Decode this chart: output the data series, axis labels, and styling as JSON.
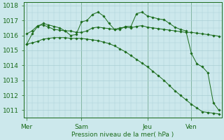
{
  "background_color": "#cce8ec",
  "grid_color": "#aacfd4",
  "line_color": "#1a6b1a",
  "xlabel": "Pression niveau de la mer( hPa )",
  "ylim": [
    1010.5,
    1018.2
  ],
  "day_labels": [
    "Mer",
    "Sam",
    "Jeu",
    "Ven"
  ],
  "day_positions": [
    0,
    10,
    22,
    30
  ],
  "series1_x": [
    0,
    1,
    2,
    3,
    4,
    5,
    6,
    7,
    8,
    9,
    10,
    11,
    12,
    13,
    14,
    15,
    16,
    17,
    18,
    19,
    20,
    21,
    22,
    23,
    24,
    25,
    26,
    27,
    28,
    29,
    30,
    31,
    32,
    33,
    34,
    35
  ],
  "series1_y": [
    1016.1,
    1016.3,
    1016.65,
    1016.7,
    1016.55,
    1016.4,
    1016.35,
    1016.3,
    1016.3,
    1016.2,
    1016.2,
    1016.3,
    1016.5,
    1016.55,
    1016.5,
    1016.45,
    1016.4,
    1016.5,
    1016.55,
    1016.5,
    1016.6,
    1016.65,
    1016.55,
    1016.5,
    1016.45,
    1016.4,
    1016.35,
    1016.3,
    1016.25,
    1016.2,
    1016.2,
    1016.15,
    1016.1,
    1016.05,
    1016.0,
    1015.95
  ],
  "series2_x": [
    0,
    1,
    2,
    3,
    4,
    5,
    6,
    7,
    8,
    9,
    10,
    11,
    12,
    13,
    14,
    15,
    16,
    17,
    18,
    19,
    20,
    21,
    22,
    23,
    24,
    25,
    26,
    27,
    28,
    29,
    30,
    31,
    32,
    33,
    34,
    35
  ],
  "series2_y": [
    1015.4,
    1016.1,
    1016.6,
    1016.8,
    1016.7,
    1016.6,
    1016.5,
    1016.3,
    1016.0,
    1016.05,
    1016.9,
    1017.0,
    1017.4,
    1017.55,
    1017.3,
    1016.8,
    1016.4,
    1016.4,
    1016.6,
    1016.6,
    1017.45,
    1017.55,
    1017.3,
    1017.2,
    1017.1,
    1017.05,
    1016.8,
    1016.55,
    1016.4,
    1016.3,
    1014.8,
    1014.1,
    1013.9,
    1013.5,
    1011.5,
    1011.0
  ],
  "series3_x": [
    0,
    1,
    2,
    3,
    4,
    5,
    6,
    7,
    8,
    9,
    10,
    11,
    12,
    13,
    14,
    15,
    16,
    17,
    18,
    19,
    20,
    21,
    22,
    23,
    24,
    25,
    26,
    27,
    28,
    29,
    30,
    31,
    32,
    33,
    34,
    35
  ],
  "series3_y": [
    1015.4,
    1015.5,
    1015.6,
    1015.75,
    1015.8,
    1015.85,
    1015.85,
    1015.85,
    1015.8,
    1015.8,
    1015.8,
    1015.75,
    1015.7,
    1015.65,
    1015.55,
    1015.45,
    1015.3,
    1015.1,
    1014.9,
    1014.65,
    1014.4,
    1014.15,
    1013.9,
    1013.6,
    1013.3,
    1013.0,
    1012.65,
    1012.3,
    1012.0,
    1011.7,
    1011.4,
    1011.15,
    1010.9,
    1010.85,
    1010.8,
    1010.75
  ]
}
